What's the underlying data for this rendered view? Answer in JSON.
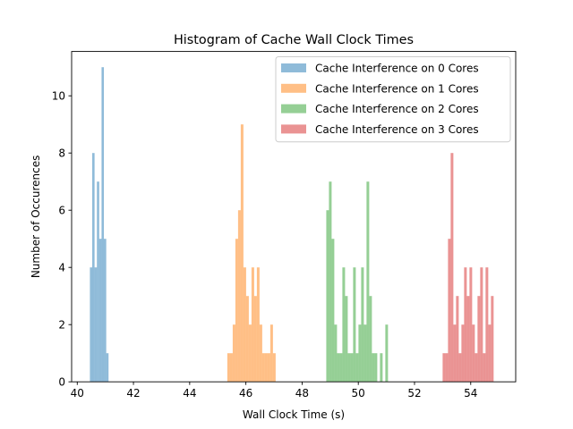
{
  "chart_data": {
    "type": "bar",
    "title": "Histogram of Cache Wall Clock Times",
    "xlabel": "Wall Clock Time (s)",
    "ylabel": "Number of Occurences",
    "xlim": [
      39.8,
      55.6
    ],
    "ylim": [
      0,
      11.55
    ],
    "xticks": [
      40,
      42,
      44,
      46,
      48,
      50,
      52,
      54
    ],
    "yticks": [
      0,
      2,
      4,
      6,
      8,
      10
    ],
    "grid": false,
    "legend_position": "top-right",
    "series": [
      {
        "name": "Cache Interference on 0 Cores",
        "color": "#1f77b4",
        "bin_start": 40.45,
        "bin_width": 0.083,
        "counts": [
          4,
          8,
          4,
          7,
          5,
          11,
          5,
          1
        ]
      },
      {
        "name": "Cache Interference on 1 Cores",
        "color": "#ff7f0e",
        "bin_start": 45.34,
        "bin_width": 0.0955,
        "counts": [
          1,
          1,
          2,
          5,
          6,
          9,
          4,
          3,
          2,
          4,
          3,
          4,
          2,
          1,
          1,
          1,
          2,
          1
        ]
      },
      {
        "name": "Cache Interference on 2 Cores",
        "color": "#2ca02c",
        "bin_start": 48.86,
        "bin_width": 0.0955,
        "counts": [
          6,
          7,
          5,
          2,
          1,
          1,
          4,
          3,
          1,
          1,
          4,
          1,
          2,
          4,
          2,
          7,
          3,
          1,
          1,
          0,
          1,
          0,
          2
        ]
      },
      {
        "name": "Cache Interference on 3 Cores",
        "color": "#d62728",
        "bin_start": 53.0,
        "bin_width": 0.0955,
        "counts": [
          1,
          1,
          5,
          8,
          2,
          3,
          1,
          2,
          4,
          3,
          4,
          2,
          1,
          3,
          4,
          1,
          4,
          2,
          3
        ]
      }
    ]
  }
}
